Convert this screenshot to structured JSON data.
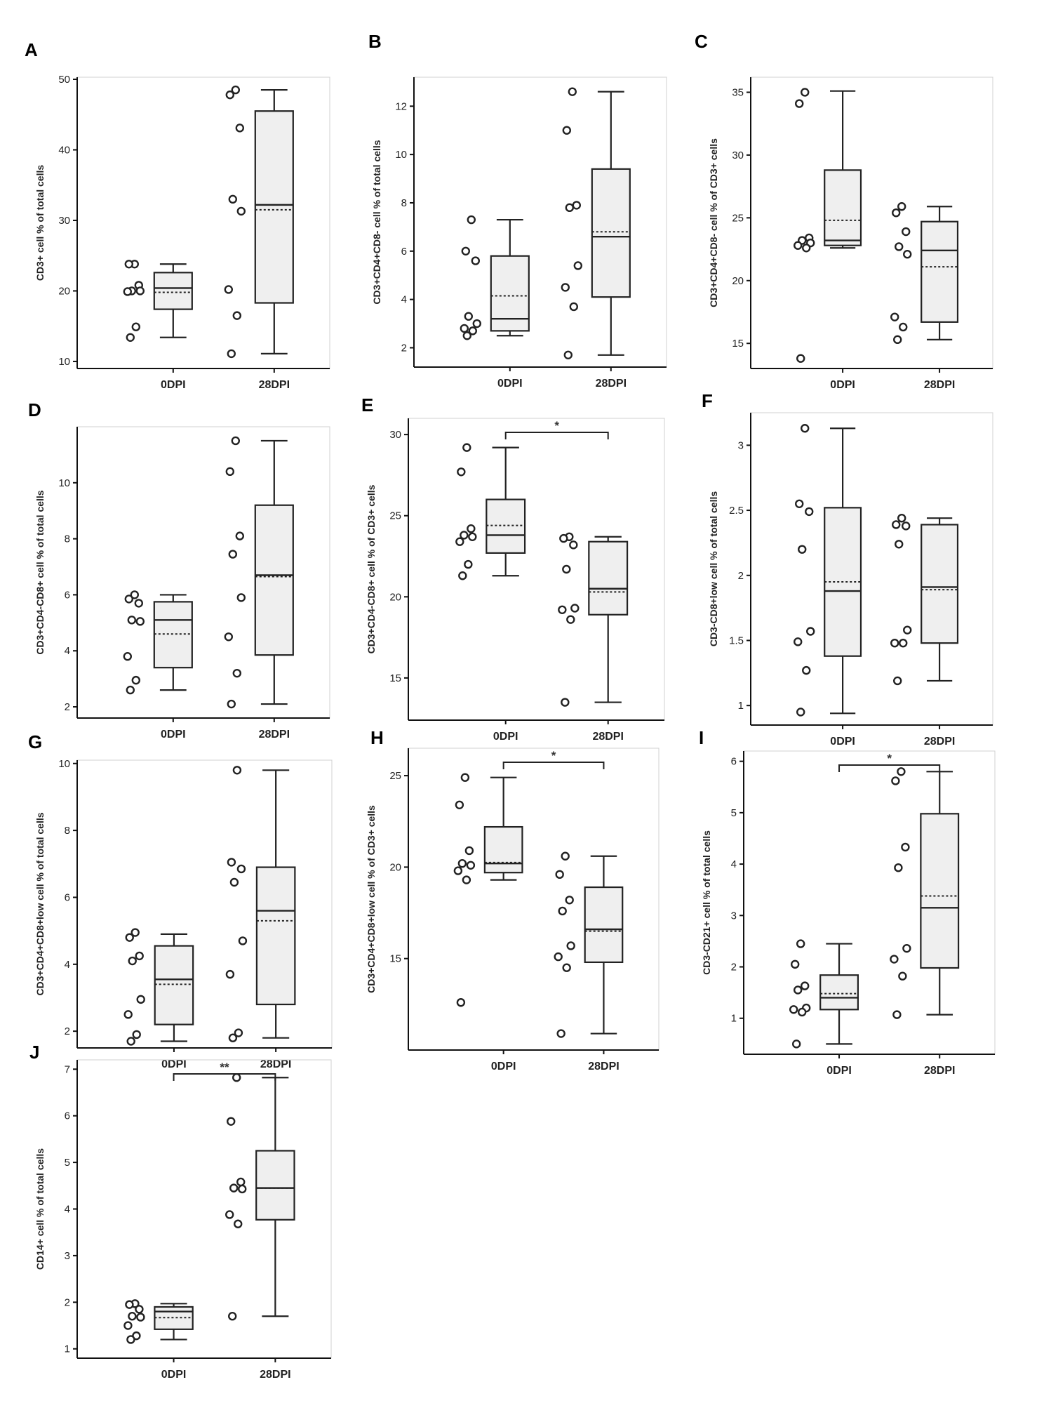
{
  "chart_data": [
    {
      "panel": "A",
      "type": "box",
      "ylabel": "CD3+ cell % of total cells",
      "categories": [
        "0DPI",
        "28DPI"
      ],
      "ylim": [
        9,
        50.3
      ],
      "yticks": [
        10,
        20,
        30,
        40,
        50
      ],
      "groups": [
        {
          "name": "0DPI",
          "min": 13.4,
          "q1": 17.4,
          "median": 20.4,
          "mean": 19.8,
          "q3": 22.6,
          "max": 23.8,
          "points": [
            23.8,
            23.8,
            20.8,
            20.0,
            20.0,
            19.9,
            14.9,
            13.4
          ]
        },
        {
          "name": "28DPI",
          "min": 11.1,
          "q1": 18.3,
          "median": 32.2,
          "mean": 31.5,
          "q3": 45.5,
          "max": 48.5,
          "points": [
            48.5,
            47.8,
            43.1,
            33.0,
            31.3,
            20.2,
            16.5,
            11.1
          ]
        }
      ],
      "significance": null
    },
    {
      "panel": "B",
      "type": "box",
      "ylabel": "CD3+CD4+CD8- cell % of total cells",
      "categories": [
        "0DPI",
        "28DPI"
      ],
      "ylim": [
        1.2,
        13.2
      ],
      "yticks": [
        2,
        4,
        6,
        8,
        10,
        12
      ],
      "groups": [
        {
          "name": "0DPI",
          "min": 2.5,
          "q1": 2.7,
          "median": 3.2,
          "mean": 4.15,
          "q3": 5.8,
          "max": 7.3,
          "points": [
            7.3,
            6.0,
            5.6,
            3.3,
            3.0,
            2.8,
            2.7,
            2.5
          ]
        },
        {
          "name": "28DPI",
          "min": 1.7,
          "q1": 4.1,
          "median": 6.6,
          "mean": 6.8,
          "q3": 9.4,
          "max": 12.6,
          "points": [
            12.6,
            11.0,
            7.9,
            7.8,
            5.4,
            4.5,
            3.7,
            1.7
          ]
        }
      ],
      "significance": null
    },
    {
      "panel": "C",
      "type": "box",
      "ylabel": "CD3+CD4+CD8- cell % of CD3+ cells",
      "categories": [
        "0DPI",
        "28DPI"
      ],
      "ylim": [
        13,
        36.2
      ],
      "yticks": [
        15,
        20,
        25,
        30,
        35
      ],
      "groups": [
        {
          "name": "0DPI",
          "min": 22.6,
          "q1": 22.8,
          "median": 23.2,
          "mean": 24.8,
          "q3": 28.8,
          "max": 35.1,
          "points": [
            35.0,
            34.1,
            23.4,
            23.2,
            23.0,
            22.8,
            22.6,
            13.8
          ]
        },
        {
          "name": "28DPI",
          "min": 15.3,
          "q1": 16.7,
          "median": 22.4,
          "mean": 21.1,
          "q3": 24.7,
          "max": 25.9,
          "points": [
            25.9,
            25.4,
            23.9,
            22.7,
            22.1,
            17.1,
            16.3,
            15.3
          ]
        }
      ],
      "significance": null
    },
    {
      "panel": "D",
      "type": "box",
      "ylabel": "CD3+CD4-CD8+ cell % of total cells",
      "categories": [
        "0DPI",
        "28DPI"
      ],
      "ylim": [
        1.6,
        12.0
      ],
      "yticks": [
        2,
        4,
        6,
        8,
        10
      ],
      "groups": [
        {
          "name": "0DPI",
          "min": 2.6,
          "q1": 3.4,
          "median": 5.1,
          "mean": 4.6,
          "q3": 5.75,
          "max": 6.0,
          "points": [
            6.0,
            5.85,
            5.7,
            5.1,
            5.05,
            3.8,
            2.95,
            2.6
          ]
        },
        {
          "name": "28DPI",
          "min": 2.1,
          "q1": 3.85,
          "median": 6.7,
          "mean": 6.65,
          "q3": 9.2,
          "max": 11.5,
          "points": [
            11.5,
            10.4,
            8.1,
            7.45,
            5.9,
            4.5,
            3.2,
            2.1
          ]
        }
      ],
      "significance": null
    },
    {
      "panel": "E",
      "type": "box",
      "ylabel": "CD3+CD4-CD8+ cell % of CD3+ cells",
      "categories": [
        "0DPI",
        "28DPI"
      ],
      "ylim": [
        12.4,
        31
      ],
      "yticks": [
        15,
        20,
        25,
        30
      ],
      "groups": [
        {
          "name": "0DPI",
          "min": 21.3,
          "q1": 22.7,
          "median": 23.8,
          "mean": 24.4,
          "q3": 26.0,
          "max": 29.2,
          "points": [
            29.2,
            27.7,
            24.2,
            23.8,
            23.7,
            23.4,
            22.0,
            21.3
          ]
        },
        {
          "name": "28DPI",
          "min": 13.5,
          "q1": 18.9,
          "median": 20.5,
          "mean": 20.3,
          "q3": 23.4,
          "max": 23.7,
          "points": [
            23.7,
            23.6,
            23.2,
            21.7,
            19.3,
            19.2,
            18.6,
            13.5
          ]
        }
      ],
      "significance": "*"
    },
    {
      "panel": "F",
      "type": "box",
      "ylabel": "CD3-CD8+low cell % of total cells",
      "categories": [
        "0DPI",
        "28DPI"
      ],
      "ylim": [
        0.85,
        3.25
      ],
      "yticks": [
        1,
        1.5,
        2,
        2.5,
        3
      ],
      "ytick_labels": [
        "1",
        "1.5",
        "2",
        "2.5",
        "3"
      ],
      "groups": [
        {
          "name": "0DPI",
          "min": 0.94,
          "q1": 1.38,
          "median": 1.88,
          "mean": 1.95,
          "q3": 2.52,
          "max": 3.13,
          "points": [
            3.13,
            2.55,
            2.49,
            2.2,
            1.57,
            1.49,
            1.27,
            0.95
          ]
        },
        {
          "name": "28DPI",
          "min": 1.19,
          "q1": 1.48,
          "median": 1.91,
          "mean": 1.89,
          "q3": 2.39,
          "max": 2.44,
          "points": [
            2.44,
            2.39,
            2.38,
            2.24,
            1.58,
            1.48,
            1.48,
            1.19
          ]
        }
      ],
      "significance": null
    },
    {
      "panel": "G",
      "type": "box",
      "ylabel": "CD3+CD4+CD8+low cell % of total cells",
      "categories": [
        "0DPI",
        "28DPI"
      ],
      "ylim": [
        1.5,
        10.1
      ],
      "yticks": [
        2,
        4,
        6,
        8,
        10
      ],
      "groups": [
        {
          "name": "0DPI",
          "min": 1.7,
          "q1": 2.2,
          "median": 3.55,
          "mean": 3.4,
          "q3": 4.55,
          "max": 4.9,
          "points": [
            4.95,
            4.8,
            4.25,
            4.1,
            2.95,
            2.5,
            1.9,
            1.7
          ]
        },
        {
          "name": "28DPI",
          "min": 1.8,
          "q1": 2.8,
          "median": 5.6,
          "mean": 5.3,
          "q3": 6.9,
          "max": 9.8,
          "points": [
            9.8,
            7.05,
            6.85,
            6.45,
            4.7,
            3.7,
            1.95,
            1.8
          ]
        }
      ],
      "significance": null
    },
    {
      "panel": "H",
      "type": "box",
      "ylabel": "CD3+CD4+CD8+low cell % of CD3+ cells",
      "categories": [
        "0DPI",
        "28DPI"
      ],
      "ylim": [
        10,
        26.5
      ],
      "yticks": [
        15,
        20,
        25
      ],
      "groups": [
        {
          "name": "0DPI",
          "min": 19.3,
          "q1": 19.7,
          "median": 20.2,
          "mean": 20.25,
          "q3": 22.2,
          "max": 24.9,
          "points": [
            24.9,
            23.4,
            20.9,
            20.2,
            20.1,
            19.8,
            19.3,
            12.6
          ]
        },
        {
          "name": "28DPI",
          "min": 10.9,
          "q1": 14.8,
          "median": 16.6,
          "mean": 16.5,
          "q3": 18.9,
          "max": 20.6,
          "points": [
            20.6,
            19.6,
            18.2,
            17.6,
            15.7,
            15.1,
            14.5,
            10.9
          ]
        }
      ],
      "significance": "*"
    },
    {
      "panel": "I",
      "type": "box",
      "ylabel": "CD3-CD21+ cell % of total cells",
      "categories": [
        "0DPI",
        "28DPI"
      ],
      "ylim": [
        0.3,
        6.2
      ],
      "yticks": [
        1,
        2,
        3,
        4,
        5,
        6
      ],
      "groups": [
        {
          "name": "0DPI",
          "min": 0.5,
          "q1": 1.17,
          "median": 1.4,
          "mean": 1.48,
          "q3": 1.84,
          "max": 2.45,
          "points": [
            2.45,
            2.05,
            1.63,
            1.55,
            1.2,
            1.17,
            1.12,
            0.5
          ]
        },
        {
          "name": "28DPI",
          "min": 1.07,
          "q1": 1.98,
          "median": 3.15,
          "mean": 3.38,
          "q3": 4.98,
          "max": 5.8,
          "points": [
            5.8,
            5.62,
            4.33,
            3.93,
            2.36,
            2.15,
            1.82,
            1.07
          ]
        }
      ],
      "significance": "*"
    },
    {
      "panel": "J",
      "type": "box",
      "ylabel": "CD14+ cell % of total cells",
      "categories": [
        "0DPI",
        "28DPI"
      ],
      "ylim": [
        0.8,
        7.2
      ],
      "yticks": [
        1,
        2,
        3,
        4,
        5,
        6,
        7
      ],
      "groups": [
        {
          "name": "0DPI",
          "min": 1.2,
          "q1": 1.42,
          "median": 1.8,
          "mean": 1.67,
          "q3": 1.9,
          "max": 1.97,
          "points": [
            1.97,
            1.95,
            1.85,
            1.7,
            1.68,
            1.5,
            1.28,
            1.2
          ]
        },
        {
          "name": "28DPI",
          "min": 1.7,
          "q1": 3.77,
          "median": 4.45,
          "mean": 4.45,
          "q3": 5.25,
          "max": 6.82,
          "points": [
            6.82,
            5.88,
            4.58,
            4.45,
            4.43,
            3.88,
            3.68,
            1.7
          ]
        }
      ],
      "significance": "**"
    }
  ]
}
